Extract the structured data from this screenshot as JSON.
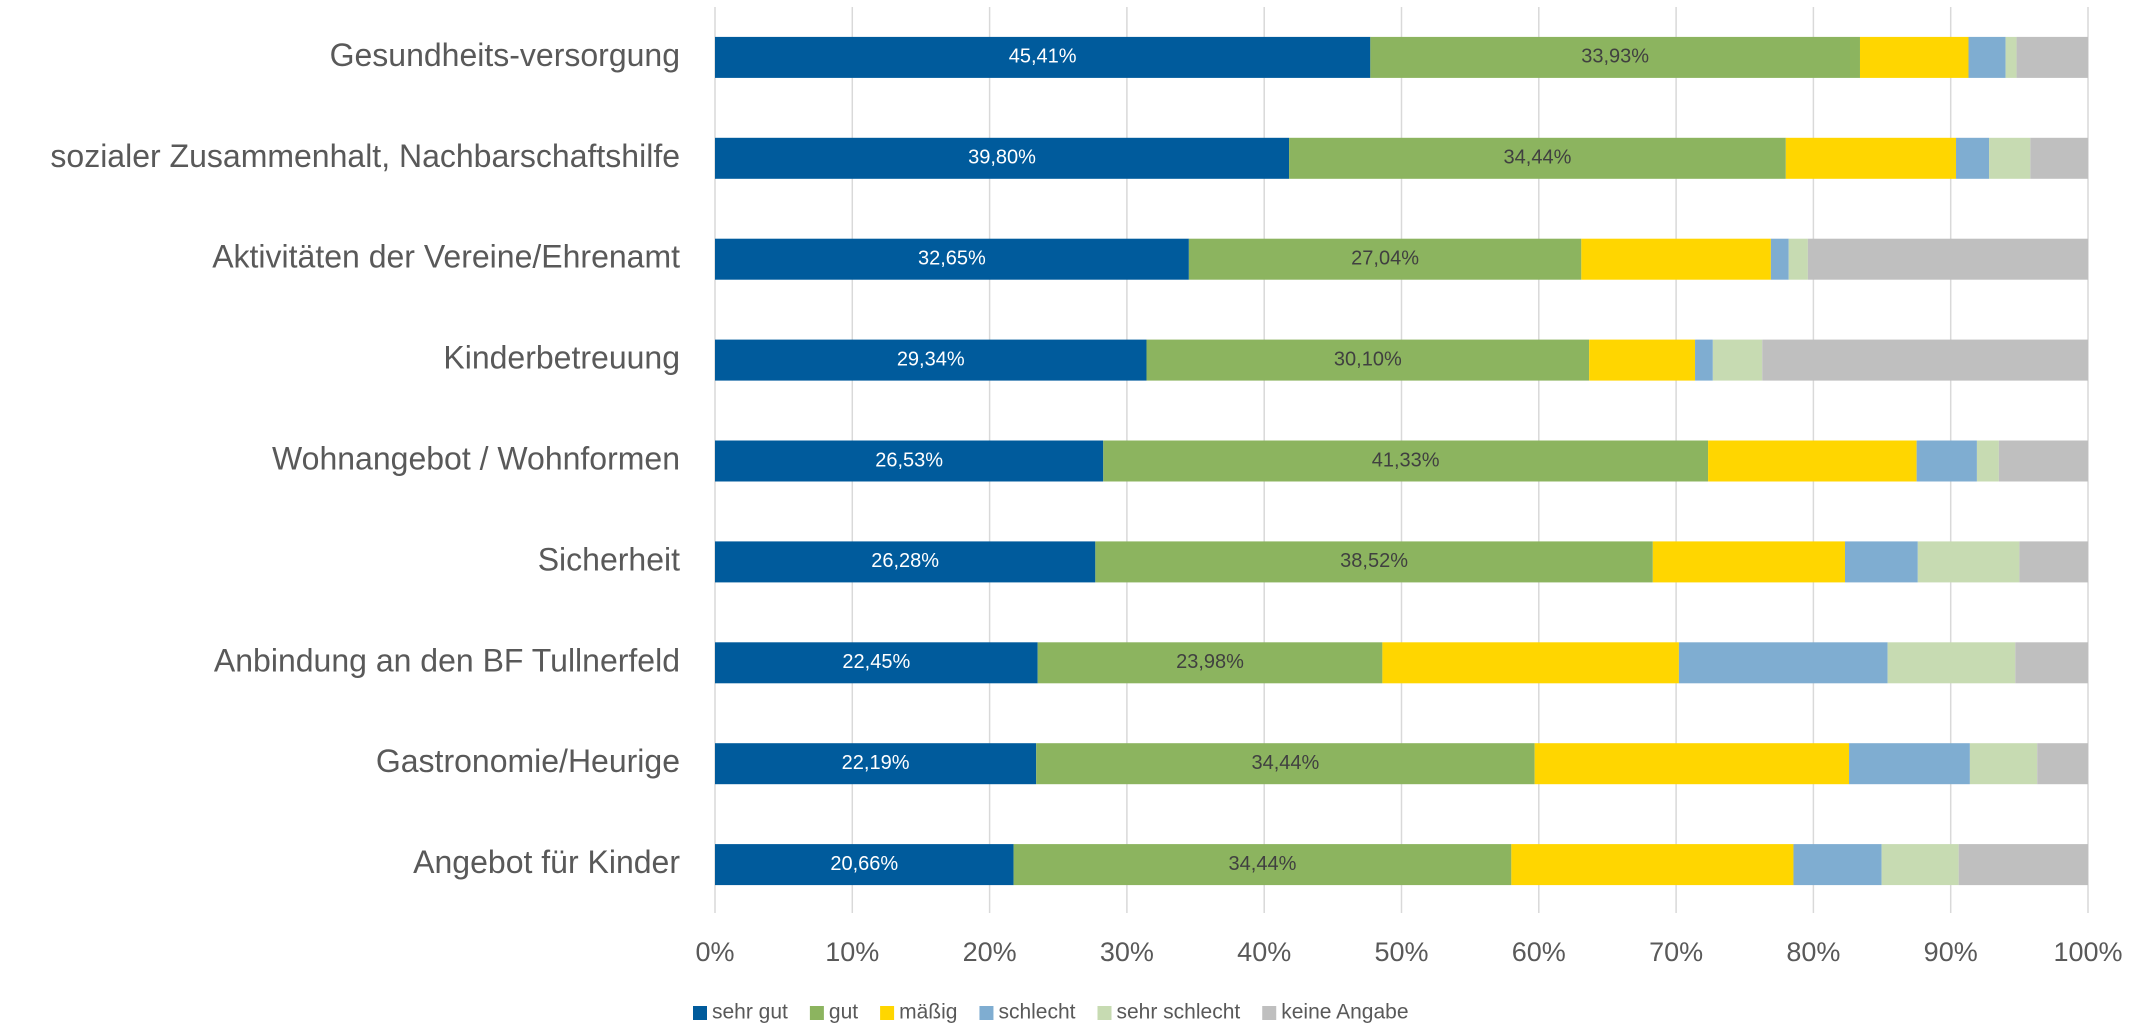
{
  "chart_data": {
    "type": "bar",
    "orientation": "horizontal",
    "stacking": "percent",
    "categories": [
      "Gesundheits-versorgung",
      "sozialer Zusammenhalt, Nachbarschaftshilfe",
      "Aktivitäten der Vereine/Ehrenamt",
      "Kinderbetreuung",
      "Wohnangebot / Wohnformen",
      "Sicherheit",
      "Anbindung an den BF Tullnerfeld",
      "Gastronomie/Heurige",
      "Angebot für Kinder"
    ],
    "series": [
      {
        "name": "sehr gut",
        "color": "#005b9c",
        "label_color": "#ffffff",
        "values": [
          45.41,
          39.8,
          32.65,
          29.34,
          26.53,
          26.28,
          22.45,
          22.19,
          20.66
        ],
        "value_labels": [
          "45,41%",
          "39,80%",
          "32,65%",
          "29,34%",
          "26,53%",
          "26,28%",
          "22,45%",
          "22,19%",
          "20,66%"
        ]
      },
      {
        "name": "gut",
        "color": "#8cb45f",
        "label_color": "#404040",
        "values": [
          33.93,
          34.44,
          27.04,
          30.1,
          41.33,
          38.52,
          23.98,
          34.44,
          34.44
        ],
        "value_labels": [
          "33,93%",
          "34,44%",
          "27,04%",
          "30,10%",
          "41,33%",
          "38,52%",
          "23,98%",
          "34,44%",
          "34,44%"
        ]
      },
      {
        "name": "mäßig",
        "color": "#ffd600",
        "values": [
          7.52,
          11.8,
          13.06,
          7.2,
          14.25,
          13.28,
          20.63,
          21.72,
          19.52
        ]
      },
      {
        "name": "schlecht",
        "color": "#7fadd1",
        "values": [
          2.57,
          2.29,
          1.23,
          1.21,
          4.12,
          5.03,
          14.52,
          8.35,
          6.1
        ]
      },
      {
        "name": "sehr schlecht",
        "color": "#c7dbb2",
        "values": [
          0.76,
          2.86,
          1.32,
          3.36,
          1.5,
          7.02,
          8.88,
          4.65,
          5.33
        ]
      },
      {
        "name": "keine Angabe",
        "color": "#bfbfbf",
        "values": [
          4.95,
          4.0,
          19.3,
          22.15,
          6.09,
          4.74,
          5.06,
          3.51,
          8.95
        ]
      }
    ],
    "xlim": [
      0,
      100
    ],
    "xticks": [
      {
        "value": 0,
        "label": "0%"
      },
      {
        "value": 10,
        "label": "10%"
      },
      {
        "value": 20,
        "label": "20%"
      },
      {
        "value": 30,
        "label": "30%"
      },
      {
        "value": 40,
        "label": "40%"
      },
      {
        "value": 50,
        "label": "50%"
      },
      {
        "value": 60,
        "label": "60%"
      },
      {
        "value": 70,
        "label": "70%"
      },
      {
        "value": 80,
        "label": "80%"
      },
      {
        "value": 90,
        "label": "90%"
      },
      {
        "value": 100,
        "label": "100%"
      }
    ],
    "grid": true,
    "legend": "bottom"
  }
}
